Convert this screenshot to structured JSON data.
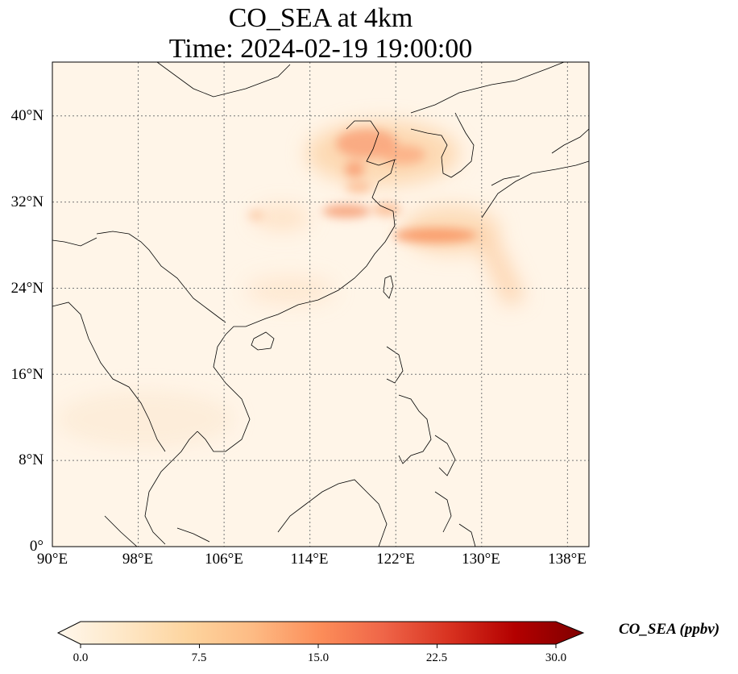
{
  "title": {
    "line1": "CO_SEA at 4km",
    "line2": "Time: 2024-02-19 19:00:00"
  },
  "map": {
    "extent_lon": [
      90,
      140
    ],
    "extent_lat": [
      0,
      45
    ],
    "gridlines": true,
    "gridline_style": "dotted",
    "lon_ticks": [
      "90°E",
      "98°E",
      "106°E",
      "114°E",
      "122°E",
      "130°E",
      "138°E"
    ],
    "lat_ticks": [
      "0°",
      "8°N",
      "16°N",
      "24°N",
      "32°N",
      "40°N"
    ],
    "background_color": "#fff5e8",
    "coastline_color": "#000000"
  },
  "colorbar": {
    "label": "CO_SEA (ppbv)",
    "ticks": [
      "0.0",
      "7.5",
      "15.0",
      "22.5",
      "30.0"
    ],
    "range": [
      0,
      30
    ],
    "colormap": "OrRd",
    "colors": [
      "#fff7ec",
      "#fee8c8",
      "#fdd49e",
      "#fdbb84",
      "#fc8d59",
      "#ef6548",
      "#d7301f",
      "#b30000",
      "#7f0000"
    ],
    "extend": "both"
  }
}
